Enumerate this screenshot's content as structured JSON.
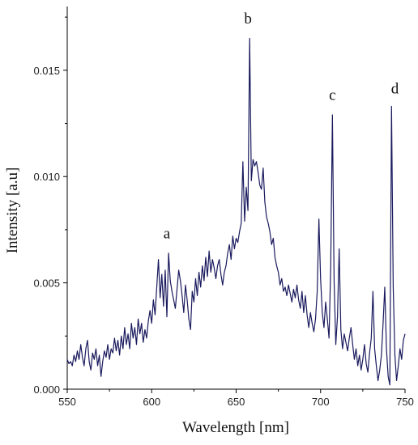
{
  "chart_data": {
    "type": "line",
    "xlabel": "Wavelength [nm]",
    "ylabel": "Intensity [a.u]",
    "xlim": [
      550,
      750
    ],
    "ylim": [
      0,
      0.018
    ],
    "xticks": [
      550,
      600,
      650,
      700,
      750
    ],
    "yticks": [
      0,
      0.005,
      0.01,
      0.015
    ],
    "ytick_labels": [
      "0.000",
      "0.005",
      "0.010",
      "0.015"
    ],
    "grid": false,
    "line_color": "#1a1a5e",
    "annotations": [
      {
        "text": "a",
        "x": 609,
        "y": 0.0071
      },
      {
        "text": "b",
        "x": 657,
        "y": 0.0172
      },
      {
        "text": "c",
        "x": 707,
        "y": 0.0136
      },
      {
        "text": "d",
        "x": 744,
        "y": 0.0139
      }
    ],
    "series": [
      {
        "values": [
          [
            550,
            0.0014
          ],
          [
            551,
            0.0012
          ],
          [
            552,
            0.0013
          ],
          [
            553,
            0.0011
          ],
          [
            554,
            0.0016
          ],
          [
            555,
            0.0013
          ],
          [
            556,
            0.0018
          ],
          [
            557,
            0.0014
          ],
          [
            558,
            0.0021
          ],
          [
            559,
            0.0015
          ],
          [
            560,
            0.0011
          ],
          [
            561,
            0.0019
          ],
          [
            562,
            0.0023
          ],
          [
            563,
            0.0013
          ],
          [
            564,
            0.0009
          ],
          [
            565,
            0.0017
          ],
          [
            566,
            0.0014
          ],
          [
            567,
            0.0019
          ],
          [
            568,
            0.0011
          ],
          [
            569,
            0.0016
          ],
          [
            570,
            0.0006
          ],
          [
            571,
            0.0013
          ],
          [
            572,
            0.0018
          ],
          [
            573,
            0.0015
          ],
          [
            574,
            0.0021
          ],
          [
            575,
            0.0014
          ],
          [
            576,
            0.0019
          ],
          [
            577,
            0.0017
          ],
          [
            578,
            0.0024
          ],
          [
            579,
            0.0018
          ],
          [
            580,
            0.0023
          ],
          [
            581,
            0.0016
          ],
          [
            582,
            0.0025
          ],
          [
            583,
            0.0019
          ],
          [
            584,
            0.0029
          ],
          [
            585,
            0.0021
          ],
          [
            586,
            0.0026
          ],
          [
            587,
            0.0019
          ],
          [
            588,
            0.0031
          ],
          [
            589,
            0.0024
          ],
          [
            590,
            0.0029
          ],
          [
            591,
            0.0021
          ],
          [
            592,
            0.0033
          ],
          [
            593,
            0.0026
          ],
          [
            594,
            0.0031
          ],
          [
            595,
            0.0022
          ],
          [
            596,
            0.0028
          ],
          [
            597,
            0.0024
          ],
          [
            598,
            0.0032
          ],
          [
            599,
            0.0037
          ],
          [
            600,
            0.0031
          ],
          [
            601,
            0.0042
          ],
          [
            602,
            0.0035
          ],
          [
            603,
            0.0048
          ],
          [
            604,
            0.0061
          ],
          [
            605,
            0.0043
          ],
          [
            606,
            0.0054
          ],
          [
            607,
            0.0039
          ],
          [
            608,
            0.0056
          ],
          [
            609,
            0.0034
          ],
          [
            610,
            0.0064
          ],
          [
            611,
            0.0051
          ],
          [
            612,
            0.0046
          ],
          [
            613,
            0.0042
          ],
          [
            614,
            0.0038
          ],
          [
            615,
            0.0047
          ],
          [
            616,
            0.0056
          ],
          [
            617,
            0.0051
          ],
          [
            618,
            0.0044
          ],
          [
            619,
            0.0036
          ],
          [
            620,
            0.0049
          ],
          [
            621,
            0.0042
          ],
          [
            622,
            0.0033
          ],
          [
            623,
            0.0028
          ],
          [
            624,
            0.0046
          ],
          [
            625,
            0.0041
          ],
          [
            626,
            0.0052
          ],
          [
            627,
            0.0044
          ],
          [
            628,
            0.0055
          ],
          [
            629,
            0.0048
          ],
          [
            630,
            0.0058
          ],
          [
            631,
            0.0051
          ],
          [
            632,
            0.0062
          ],
          [
            633,
            0.0053
          ],
          [
            634,
            0.0065
          ],
          [
            635,
            0.0055
          ],
          [
            636,
            0.0061
          ],
          [
            637,
            0.0057
          ],
          [
            638,
            0.0052
          ],
          [
            639,
            0.0058
          ],
          [
            640,
            0.0061
          ],
          [
            641,
            0.0054
          ],
          [
            642,
            0.0049
          ],
          [
            643,
            0.0055
          ],
          [
            644,
            0.0058
          ],
          [
            645,
            0.0064
          ],
          [
            646,
            0.0068
          ],
          [
            647,
            0.0061
          ],
          [
            648,
            0.0072
          ],
          [
            649,
            0.0066
          ],
          [
            650,
            0.0071
          ],
          [
            651,
            0.0069
          ],
          [
            652,
            0.0074
          ],
          [
            653,
            0.0078
          ],
          [
            654,
            0.0107
          ],
          [
            655,
            0.0079
          ],
          [
            656,
            0.0095
          ],
          [
            657,
            0.0084
          ],
          [
            658,
            0.0165
          ],
          [
            659,
            0.0098
          ],
          [
            660,
            0.0108
          ],
          [
            661,
            0.0105
          ],
          [
            662,
            0.0107
          ],
          [
            663,
            0.0102
          ],
          [
            664,
            0.0096
          ],
          [
            665,
            0.0094
          ],
          [
            666,
            0.0104
          ],
          [
            667,
            0.0088
          ],
          [
            668,
            0.0081
          ],
          [
            669,
            0.0078
          ],
          [
            670,
            0.0074
          ],
          [
            671,
            0.0068
          ],
          [
            672,
            0.0071
          ],
          [
            673,
            0.0062
          ],
          [
            674,
            0.0058
          ],
          [
            675,
            0.0055
          ],
          [
            676,
            0.0049
          ],
          [
            677,
            0.0052
          ],
          [
            678,
            0.0046
          ],
          [
            679,
            0.0048
          ],
          [
            680,
            0.0044
          ],
          [
            681,
            0.0049
          ],
          [
            682,
            0.0045
          ],
          [
            683,
            0.0041
          ],
          [
            684,
            0.0047
          ],
          [
            685,
            0.0043
          ],
          [
            686,
            0.0049
          ],
          [
            687,
            0.0042
          ],
          [
            688,
            0.0038
          ],
          [
            689,
            0.0046
          ],
          [
            690,
            0.0036
          ],
          [
            691,
            0.0044
          ],
          [
            692,
            0.0035
          ],
          [
            693,
            0.0029
          ],
          [
            694,
            0.0036
          ],
          [
            695,
            0.0031
          ],
          [
            696,
            0.0027
          ],
          [
            697,
            0.0033
          ],
          [
            698,
            0.0046
          ],
          [
            699,
            0.008
          ],
          [
            700,
            0.0052
          ],
          [
            701,
            0.0036
          ],
          [
            702,
            0.0029
          ],
          [
            703,
            0.0041
          ],
          [
            704,
            0.0033
          ],
          [
            705,
            0.0024
          ],
          [
            706,
            0.0058
          ],
          [
            707,
            0.0129
          ],
          [
            708,
            0.0051
          ],
          [
            709,
            0.0021
          ],
          [
            710,
            0.0034
          ],
          [
            711,
            0.0066
          ],
          [
            712,
            0.0028
          ],
          [
            713,
            0.0019
          ],
          [
            714,
            0.0026
          ],
          [
            715,
            0.0022
          ],
          [
            716,
            0.0018
          ],
          [
            717,
            0.0024
          ],
          [
            718,
            0.0029
          ],
          [
            719,
            0.0021
          ],
          [
            720,
            0.0014
          ],
          [
            721,
            0.0019
          ],
          [
            722,
            0.0011
          ],
          [
            723,
            0.0016
          ],
          [
            724,
            0.0009
          ],
          [
            725,
            0.0014
          ],
          [
            726,
            0.0021
          ],
          [
            727,
            0.0012
          ],
          [
            728,
            0.0008
          ],
          [
            729,
            0.0017
          ],
          [
            730,
            0.0024
          ],
          [
            731,
            0.0046
          ],
          [
            732,
            0.0019
          ],
          [
            733,
            0.0011
          ],
          [
            734,
            0.0004
          ],
          [
            735,
            0.0009
          ],
          [
            736,
            0.0016
          ],
          [
            737,
            0.0031
          ],
          [
            738,
            0.0048
          ],
          [
            739,
            0.0019
          ],
          [
            740,
            0.0006
          ],
          [
            741,
            0.0002
          ],
          [
            742,
            0.0133
          ],
          [
            743,
            0.0048
          ],
          [
            744,
            0.0016
          ],
          [
            745,
            0.0004
          ],
          [
            746,
            0.0011
          ],
          [
            747,
            0.0019
          ],
          [
            748,
            0.0014
          ],
          [
            749,
            0.0023
          ],
          [
            750,
            0.0026
          ]
        ]
      }
    ]
  }
}
